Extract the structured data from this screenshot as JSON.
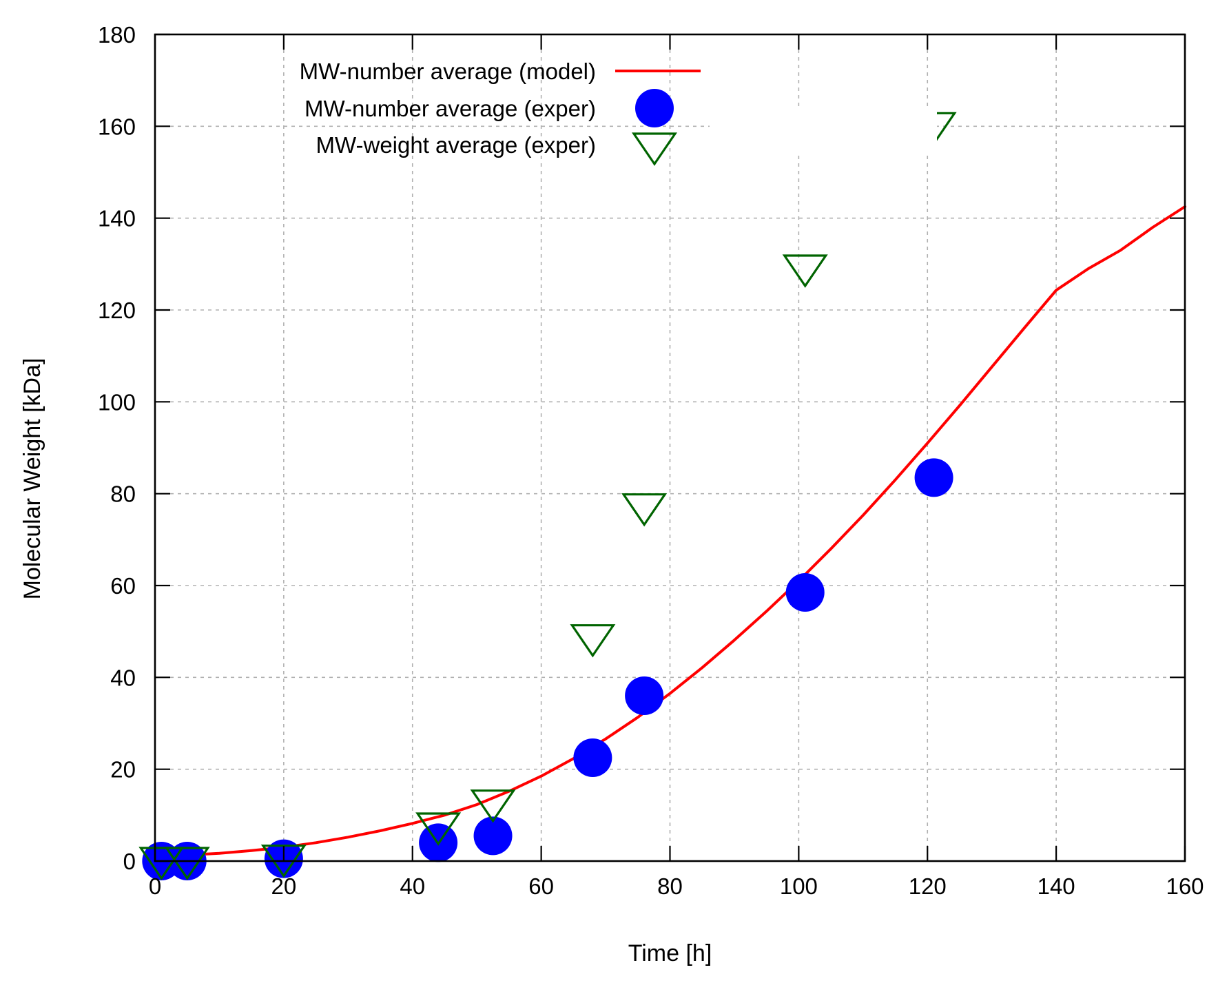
{
  "chart_data": {
    "type": "scatter",
    "xlabel": "Time [h]",
    "ylabel": "Molecular Weight [kDa]",
    "xlim": [
      0,
      160
    ],
    "ylim": [
      0,
      180
    ],
    "xticks": [
      0,
      20,
      40,
      60,
      80,
      100,
      120,
      140,
      160
    ],
    "yticks": [
      0,
      20,
      40,
      60,
      80,
      100,
      120,
      140,
      160,
      180
    ],
    "grid": true,
    "legend_position": "top-left",
    "series": [
      {
        "name": "MW-number average (model)",
        "kind": "line",
        "color": "#ff0000",
        "x": [
          0,
          5,
          10,
          15,
          20,
          25,
          30,
          35,
          40,
          45,
          50,
          55,
          60,
          65,
          70,
          75,
          80,
          85,
          90,
          95,
          100,
          105,
          110,
          115,
          120,
          125,
          130,
          135,
          140,
          145,
          150,
          155,
          160
        ],
        "y": [
          1.0,
          1.3,
          1.7,
          2.3,
          3.0,
          4.0,
          5.2,
          6.6,
          8.2,
          10.0,
          12.3,
          15.2,
          18.5,
          22.3,
          26.6,
          31.3,
          36.5,
          42.1,
          48.1,
          54.4,
          61.0,
          68.0,
          75.3,
          83.0,
          91.0,
          99.2,
          107.6,
          116.0,
          124.3,
          129.0,
          133.0,
          138.0,
          142.5
        ]
      },
      {
        "name": "MW-number average (exper)",
        "kind": "marker-circle",
        "color": "#0000ff",
        "x": [
          1,
          5,
          20,
          44,
          52.5,
          68,
          76,
          101,
          121
        ],
        "y": [
          0,
          0,
          0.5,
          4,
          5.5,
          22.5,
          36,
          58.5,
          83.5
        ]
      },
      {
        "name": "MW-weight average (exper)",
        "kind": "marker-triangle-down",
        "color": "#006400",
        "x": [
          1,
          5,
          20,
          44,
          52.5,
          68,
          76,
          101,
          121
        ],
        "y": [
          0,
          0,
          0.5,
          7.5,
          12.5,
          48.5,
          77,
          129,
          160
        ]
      }
    ]
  }
}
